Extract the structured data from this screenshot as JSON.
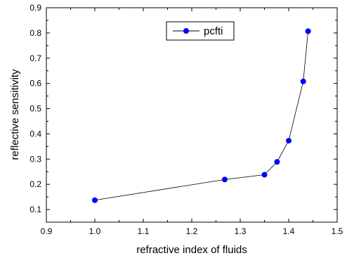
{
  "chart_data": {
    "type": "line",
    "title": "",
    "xlabel": "refractive index of fluids",
    "ylabel": "reflective sensitivity",
    "xlim": [
      0.9,
      1.5
    ],
    "ylim": [
      0.05,
      0.9
    ],
    "xticks": [
      0.9,
      1.0,
      1.1,
      1.2,
      1.3,
      1.4,
      1.5
    ],
    "xtick_labels": [
      "0.9",
      "1.0",
      "1.1",
      "1.2",
      "1.3",
      "1.4",
      "1.5"
    ],
    "yticks": [
      0.1,
      0.2,
      0.3,
      0.4,
      0.5,
      0.6,
      0.7,
      0.8,
      0.9
    ],
    "ytick_labels": [
      "0.1",
      "0.2",
      "0.3",
      "0.4",
      "0.5",
      "0.6",
      "0.7",
      "0.8",
      "0.9"
    ],
    "grid": false,
    "legend_position": "top-center",
    "series": [
      {
        "name": "pcfti",
        "color": "#0000ff",
        "line_color": "#000000",
        "marker": "circle",
        "x": [
          1.0,
          1.268,
          1.35,
          1.376,
          1.4,
          1.43,
          1.44
        ],
        "y": [
          0.137,
          0.219,
          0.238,
          0.289,
          0.373,
          0.608,
          0.807
        ]
      }
    ]
  }
}
